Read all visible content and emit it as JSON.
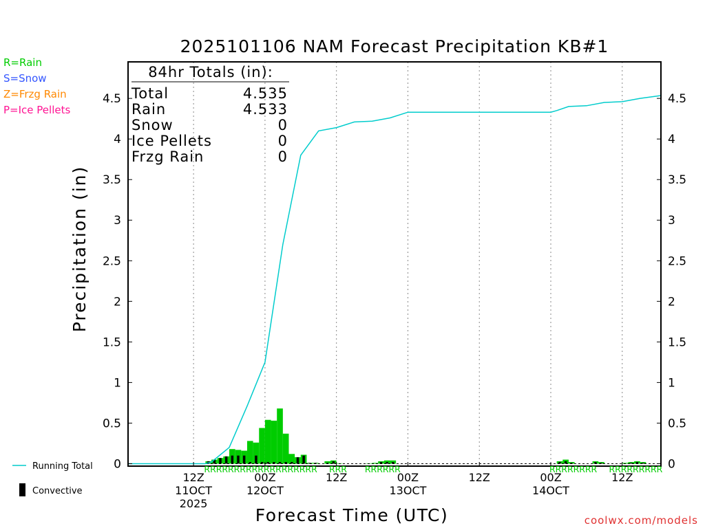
{
  "chart_data": {
    "type": "bar",
    "title": "2025101106 NAM Forecast Precipitation KB#1",
    "ylabel": "Precipitation (in)",
    "xlabel": "Forecast Time (UTC)",
    "ylim": [
      -0.03,
      4.95
    ],
    "xlim_hours": [
      -5,
      84.5
    ],
    "y_ticks": [
      0,
      0.5,
      1,
      1.5,
      2,
      2.5,
      3,
      3.5,
      4,
      4.5
    ],
    "y_tick_labels": [
      "0",
      "0.5",
      "1",
      "1.5",
      "2",
      "2.5",
      "3",
      "3.5",
      "4",
      "4.5"
    ],
    "x_ticks": [
      {
        "hour": 6,
        "lines": [
          "12Z",
          "11OCT",
          "2025"
        ]
      },
      {
        "hour": 18,
        "lines": [
          "00Z",
          "12OCT"
        ]
      },
      {
        "hour": 30,
        "lines": [
          "12Z"
        ]
      },
      {
        "hour": 42,
        "lines": [
          "00Z",
          "13OCT"
        ]
      },
      {
        "hour": 54,
        "lines": [
          "12Z"
        ]
      },
      {
        "hour": 66,
        "lines": [
          "00Z",
          "14OCT"
        ]
      },
      {
        "hour": 78,
        "lines": [
          "12Z"
        ]
      }
    ],
    "totals_box": {
      "heading": "84hr Totals (in):",
      "rows": [
        {
          "label": "Total",
          "value": "4.535"
        },
        {
          "label": "Rain",
          "value": "4.533"
        },
        {
          "label": "Snow",
          "value": "0"
        },
        {
          "label": "Ice Pellets",
          "value": "0"
        },
        {
          "label": "Frzg Rain",
          "value": "0"
        }
      ]
    },
    "precip_type_legend": [
      {
        "label": "R=Rain",
        "color": "#00cc00"
      },
      {
        "label": "S=Snow",
        "color": "#3355ff"
      },
      {
        "label": "Z=Frzg Rain",
        "color": "#ff8800"
      },
      {
        "label": "P=Ice Pellets",
        "color": "#ff1493"
      }
    ],
    "series_legend": [
      {
        "label": "Running Total",
        "color": "#00cccc",
        "kind": "line"
      },
      {
        "label": "Convective",
        "color": "#000000",
        "kind": "bar"
      }
    ],
    "bar_hours": [
      9,
      10,
      11,
      12,
      13,
      14,
      15,
      16,
      17,
      18,
      19,
      20,
      21,
      22,
      23,
      24,
      25,
      26,
      27,
      28,
      29,
      30,
      31,
      36,
      37,
      38,
      39,
      40,
      41,
      42,
      43,
      44,
      45,
      46,
      47,
      48,
      49,
      50,
      51,
      52,
      53,
      54,
      55,
      56,
      57,
      58,
      59,
      60,
      61,
      62,
      63,
      64,
      65,
      66,
      67,
      68,
      69,
      70,
      71,
      72,
      73,
      74,
      75,
      76,
      77,
      78,
      79,
      80,
      81,
      82,
      83
    ],
    "bar_values": [
      0.03,
      0.05,
      0.07,
      0.09,
      0.18,
      0.17,
      0.16,
      0.28,
      0.26,
      0.44,
      0.54,
      0.53,
      0.68,
      0.37,
      0.12,
      0.08,
      0.11,
      0.01,
      0.01,
      0.0,
      0.03,
      0.04,
      0.005,
      0.005,
      0.01,
      0.03,
      0.04,
      0.04,
      0.0,
      0.0,
      0.0,
      0.0,
      0.0,
      0.0,
      0.0,
      0.0,
      0.0,
      0.0,
      0.0,
      0.0,
      0.0,
      0.0,
      0.0,
      0.0,
      0.0,
      0.0,
      0.0,
      0.0,
      0.0,
      0.0,
      0.0,
      0.0,
      0.0,
      0.0,
      0.0,
      0.03,
      0.05,
      0.02,
      0.0,
      0.0,
      0.0,
      0.03,
      0.02,
      0.0,
      0.0,
      0.0,
      0.01,
      0.02,
      0.03,
      0.02,
      0.0
    ],
    "convective_values": [
      0.03,
      0.05,
      0.07,
      0.09,
      0.1,
      0.1,
      0.1,
      0.02,
      0.1,
      0.02,
      0.02,
      0.02,
      0.02,
      0.02,
      0.02,
      0.08,
      0.1,
      0.01,
      0.01,
      0.0,
      0.01,
      0.03,
      0.0,
      0.0,
      0.0,
      0.02,
      0.02,
      0.02,
      0.0,
      0.0,
      0.0,
      0.0,
      0.0,
      0.0,
      0.0,
      0.0,
      0.0,
      0.0,
      0.0,
      0.0,
      0.0,
      0.0,
      0.0,
      0.0,
      0.0,
      0.0,
      0.0,
      0.0,
      0.0,
      0.0,
      0.0,
      0.0,
      0.0,
      0.0,
      0.0,
      0.02,
      0.03,
      0.01,
      0.0,
      0.0,
      0.0,
      0.02,
      0.01,
      0.0,
      0.0,
      0.0,
      0.0,
      0.01,
      0.02,
      0.01,
      0.0
    ],
    "running_total": {
      "hours": [
        -5,
        8,
        9,
        12,
        15,
        18,
        21,
        24,
        27,
        30,
        33,
        36,
        39,
        42,
        45,
        48,
        51,
        54,
        57,
        60,
        63,
        66,
        67,
        69,
        72,
        75,
        78,
        81,
        84.5
      ],
      "values": [
        0,
        0,
        0.02,
        0.2,
        0.71,
        1.25,
        2.7,
        3.8,
        4.1,
        4.14,
        4.21,
        4.22,
        4.26,
        4.33,
        4.33,
        4.33,
        4.33,
        4.33,
        4.33,
        4.33,
        4.33,
        4.33,
        4.35,
        4.4,
        4.41,
        4.45,
        4.46,
        4.5,
        4.535
      ]
    },
    "ptype_marks": [
      {
        "start": 8,
        "text": "RRRRRRRRRRRRRRRRRRR"
      },
      {
        "start": 29,
        "text": "RRR"
      },
      {
        "start": 35,
        "text": "RRRRRR"
      },
      {
        "start": 66,
        "text": "RRRR"
      },
      {
        "start": 70,
        "text": "RRRR"
      },
      {
        "start": 76,
        "text": "RRRRRRRRR"
      }
    ],
    "credit": "coolwx.com/models"
  }
}
